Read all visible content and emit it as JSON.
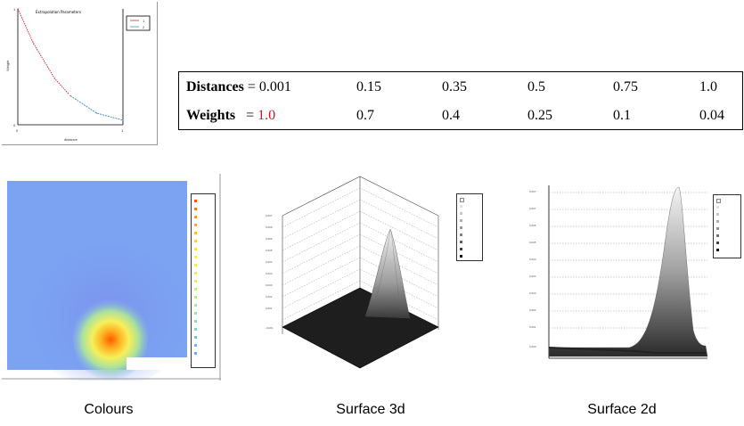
{
  "weights_plot": {
    "title": "Extrapolation Parameters",
    "xlabel": "distance",
    "ylabel": "Weight",
    "y_ticks": [
      "1",
      "0"
    ],
    "x_ticks": [
      "0",
      "1"
    ],
    "legend": [
      "1",
      "2"
    ],
    "colors": {
      "series1": "#d0303a",
      "series2": "#4a8ed0"
    }
  },
  "table": {
    "distances_label": "Distances",
    "weights_label": "Weights",
    "eq": "= ",
    "distances": [
      "0.001",
      "0.15",
      "0.35",
      "0.5",
      "0.75",
      "1.0"
    ],
    "weights": [
      "1.0",
      "0.7",
      "0.4",
      "0.25",
      "0.1",
      "0.04"
    ],
    "highlight_color": "#d81020"
  },
  "chart_data": [
    {
      "type": "line",
      "title": "Extrapolation Parameters",
      "xlabel": "distance",
      "ylabel": "Weight",
      "x": [
        0.001,
        0.15,
        0.35,
        0.5,
        0.75,
        1.0
      ],
      "series": [
        {
          "values": [
            1.0,
            0.7,
            0.4,
            0.25,
            0.1,
            0.04
          ]
        }
      ],
      "xlim": [
        0,
        1
      ],
      "ylim": [
        0,
        1
      ],
      "grid": false,
      "legend": "top-right"
    },
    {
      "type": "heatmap",
      "title": "",
      "grid": false,
      "legend": "right"
    },
    {
      "type": "area",
      "title": "",
      "grid": true,
      "legend": "top-right"
    },
    {
      "type": "area",
      "title": "",
      "grid": true,
      "legend": "top-right"
    }
  ],
  "captions": {
    "colours": "Colours",
    "surface3d": "Surface 3d",
    "surface2d": "Surface 2d"
  }
}
